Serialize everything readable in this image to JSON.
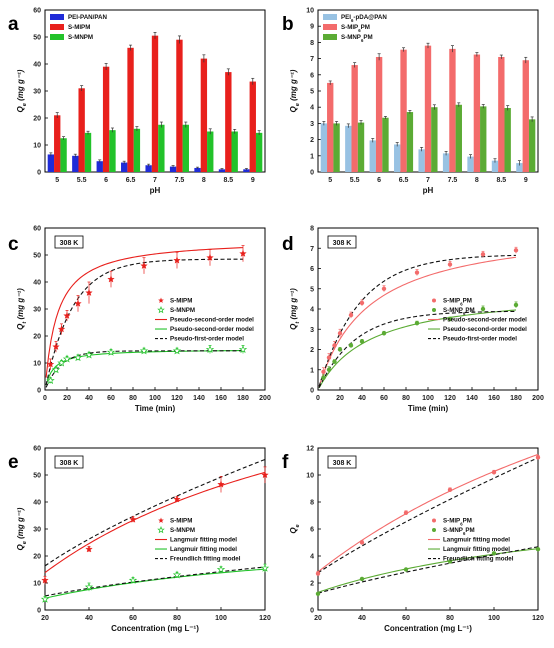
{
  "chart_data": [
    {
      "panel": "a",
      "type": "bar",
      "xlabel": "pH",
      "ylabel": "Q",
      "ylabel_sub": "e",
      "ylabel_unit": "(mg g⁻¹)",
      "categories": [
        "5",
        "5.5",
        "6",
        "6.5",
        "7",
        "7.5",
        "8",
        "8.5",
        "9"
      ],
      "ylim": [
        0,
        60
      ],
      "yticks": [
        0,
        10,
        20,
        30,
        40,
        50,
        60
      ],
      "legend_position": "top-left",
      "series": [
        {
          "name": "PEI-PAN/PAN",
          "color": "#1f2bd8",
          "values": [
            6.5,
            6,
            4,
            3.5,
            2.5,
            2,
            1.5,
            1,
            1
          ],
          "errors": [
            0.6,
            0.6,
            0.5,
            0.5,
            0.4,
            0.4,
            0.3,
            0.3,
            0.3
          ]
        },
        {
          "name": "S-MIPM",
          "color": "#e8201c",
          "values": [
            21,
            31,
            39,
            46,
            50.5,
            49,
            42,
            37,
            33.5
          ],
          "errors": [
            1,
            1,
            1.2,
            1,
            1.2,
            1.4,
            1.4,
            1.2,
            1.2
          ]
        },
        {
          "name": "S-MNPM",
          "color": "#22c22a",
          "values": [
            12.5,
            14.5,
            15.5,
            16,
            17.5,
            17.5,
            15,
            15,
            14.5
          ],
          "errors": [
            0.6,
            0.6,
            0.8,
            0.8,
            1,
            1,
            1,
            0.8,
            0.8
          ]
        }
      ]
    },
    {
      "panel": "b",
      "type": "bar",
      "xlabel": "pH",
      "ylabel": "Q",
      "ylabel_sub": "e",
      "ylabel_unit": "(mg g⁻¹)",
      "categories": [
        "5",
        "5.5",
        "6",
        "6.5",
        "7",
        "7.5",
        "8",
        "8.5",
        "9"
      ],
      "ylim": [
        0,
        10
      ],
      "yticks": [
        0,
        1,
        2,
        3,
        4,
        5,
        6,
        7,
        8,
        9,
        10
      ],
      "legend_position": "top-left",
      "series": [
        {
          "name": "PEI",
          "name_sub": "6",
          "name_rest": "-pDA@PAN",
          "color": "#98c2e3",
          "values": [
            3,
            2.85,
            1.95,
            1.7,
            1.4,
            1.15,
            0.95,
            0.7,
            0.55
          ],
          "errors": [
            0.12,
            0.12,
            0.12,
            0.12,
            0.12,
            0.12,
            0.12,
            0.12,
            0.15
          ]
        },
        {
          "name": "S-MIP",
          "name_sub": "6",
          "name_rest": "PM",
          "color": "#f36b6b",
          "values": [
            5.5,
            6.6,
            7.1,
            7.55,
            7.8,
            7.6,
            7.25,
            7.1,
            6.9
          ],
          "errors": [
            0.12,
            0.15,
            0.2,
            0.12,
            0.15,
            0.2,
            0.12,
            0.12,
            0.18
          ]
        },
        {
          "name": "S-MNP",
          "name_sub": "6",
          "name_rest": "PM",
          "color": "#5bab34",
          "values": [
            3,
            3.05,
            3.35,
            3.7,
            4,
            4.15,
            4.05,
            3.95,
            3.25
          ],
          "errors": [
            0.12,
            0.12,
            0.08,
            0.1,
            0.15,
            0.12,
            0.12,
            0.15,
            0.15
          ]
        }
      ]
    },
    {
      "panel": "c",
      "type": "scatter",
      "xlabel": "Time (min)",
      "ylabel": "Q",
      "ylabel_sub": "t",
      "ylabel_unit": "(mg g⁻¹)",
      "xlim": [
        0,
        200
      ],
      "xticks": [
        0,
        20,
        40,
        60,
        80,
        100,
        120,
        140,
        160,
        180,
        200
      ],
      "ylim": [
        0,
        60
      ],
      "yticks": [
        0,
        10,
        20,
        30,
        40,
        50,
        60
      ],
      "temperature_label": "308 K",
      "legend_position": "middle-right",
      "series": [
        {
          "name": "S-MIPM",
          "color": "#e8201c",
          "marker": "star-filled",
          "x": [
            5,
            10,
            15,
            20,
            30,
            40,
            60,
            90,
            120,
            150,
            180
          ],
          "y": [
            9.5,
            16,
            22.5,
            27.5,
            32,
            36,
            41,
            46,
            48,
            49,
            50.5
          ],
          "errors": [
            2,
            2,
            2,
            2,
            3,
            4,
            3,
            3,
            3,
            3,
            3
          ]
        },
        {
          "name": "S-MNPM",
          "color": "#22c22a",
          "marker": "star-open",
          "x": [
            5,
            10,
            15,
            20,
            30,
            40,
            60,
            90,
            120,
            150,
            180
          ],
          "y": [
            3.5,
            7.5,
            10,
            11.5,
            12,
            13,
            14,
            14.5,
            14.5,
            15,
            15
          ],
          "errors": [
            1,
            1,
            1,
            1,
            1,
            1,
            1,
            1,
            1,
            1.5,
            1.5
          ]
        }
      ],
      "fits": [
        {
          "name": "Pseudo-second-order model",
          "color": "#e8201c",
          "style": "solid",
          "qe": 56,
          "k": 0.0016,
          "kind": "pso"
        },
        {
          "name": "Pseudo-second-order model",
          "color": "#22c22a",
          "style": "solid",
          "qe": 15.2,
          "k": 0.009,
          "kind": "pso"
        },
        {
          "name": "Pseudo-first-order model",
          "color": "#111111",
          "style": "dashed",
          "qe": 48.5,
          "k": 0.04,
          "kind": "pfo"
        },
        {
          "name": "",
          "color": "#111111",
          "style": "dashed",
          "qe": 14.5,
          "k": 0.07,
          "kind": "pfo"
        }
      ]
    },
    {
      "panel": "d",
      "type": "scatter",
      "xlabel": "Time (min)",
      "ylabel": "Q",
      "ylabel_sub": "t",
      "ylabel_unit": "(mg g⁻¹)",
      "xlim": [
        0,
        200
      ],
      "xticks": [
        0,
        20,
        40,
        60,
        80,
        100,
        120,
        140,
        160,
        180,
        200
      ],
      "ylim": [
        0,
        8
      ],
      "yticks": [
        0,
        1,
        2,
        3,
        4,
        5,
        6,
        7,
        8
      ],
      "temperature_label": "308 K",
      "legend_position": "middle-right",
      "series": [
        {
          "name": "S-MIP",
          "name_sub": "6",
          "name_rest": "PM",
          "color": "#f36b6b",
          "marker": "circle",
          "x": [
            5,
            10,
            15,
            20,
            30,
            40,
            60,
            90,
            120,
            150,
            180
          ],
          "y": [
            0.9,
            1.6,
            2.2,
            2.8,
            3.7,
            4.3,
            5,
            5.8,
            6.2,
            6.7,
            6.9
          ],
          "errors": [
            0.2,
            0.2,
            0.2,
            0.2,
            0.15,
            0.15,
            0.15,
            0.15,
            0.15,
            0.15,
            0.15
          ]
        },
        {
          "name": "S-MNP",
          "name_sub": "6",
          "name_rest": "PM",
          "color": "#5bab34",
          "marker": "circle",
          "x": [
            5,
            10,
            15,
            20,
            30,
            40,
            60,
            90,
            120,
            150,
            180
          ],
          "y": [
            0.6,
            1,
            1.4,
            2,
            2.2,
            2.4,
            2.8,
            3.3,
            3.5,
            4,
            4.2
          ],
          "errors": [
            0.15,
            0.15,
            0.1,
            0.1,
            0.1,
            0.1,
            0.1,
            0.1,
            0.1,
            0.15,
            0.15
          ]
        }
      ],
      "fits": [
        {
          "name": "Pseudo-second-order model",
          "color": "#f36b6b",
          "style": "solid",
          "qe": 8.2,
          "k": 0.0027,
          "kind": "pso"
        },
        {
          "name": "Pseudo-second-order model",
          "color": "#5bab34",
          "style": "solid",
          "qe": 5.0,
          "k": 0.0042,
          "kind": "pso"
        },
        {
          "name": "Pseudo-first-order model",
          "color": "#111111",
          "style": "dashed",
          "qe": 6.7,
          "k": 0.027,
          "kind": "pfo"
        },
        {
          "name": "",
          "color": "#111111",
          "style": "dashed",
          "qe": 3.9,
          "k": 0.03,
          "kind": "pfo"
        }
      ]
    },
    {
      "panel": "e",
      "type": "scatter",
      "xlabel": "Concentration (mg L⁻¹)",
      "ylabel": "Q",
      "ylabel_sub": "e",
      "ylabel_unit": "(mg g⁻¹)",
      "xlim": [
        20,
        120
      ],
      "xticks": [
        20,
        40,
        60,
        80,
        100,
        120
      ],
      "ylim": [
        0,
        60
      ],
      "yticks": [
        0,
        10,
        20,
        30,
        40,
        50,
        60
      ],
      "temperature_label": "308 K",
      "legend_position": "middle-right",
      "series": [
        {
          "name": "S-MIPM",
          "color": "#e8201c",
          "marker": "star-filled",
          "x": [
            20,
            40,
            60,
            80,
            100,
            120
          ],
          "y": [
            11,
            22.5,
            33.5,
            41,
            46.5,
            50
          ],
          "errors": [
            1.5,
            1,
            1,
            1,
            3,
            3
          ]
        },
        {
          "name": "S-MNPM",
          "color": "#22c22a",
          "marker": "star-open",
          "x": [
            20,
            40,
            60,
            80,
            100,
            120
          ],
          "y": [
            4,
            8.5,
            11,
            13,
            15,
            15.5
          ],
          "errors": [
            1,
            1.5,
            1,
            1,
            1,
            1.5
          ]
        }
      ],
      "fits": [
        {
          "name": "Langmuir fitting model",
          "color": "#e8201c",
          "style": "solid",
          "qm": 110,
          "kl": 0.0072,
          "kind": "langmuir"
        },
        {
          "name": "Langmuir fitting model",
          "color": "#22c22a",
          "style": "solid",
          "qm": 30,
          "kl": 0.0085,
          "kind": "langmuir"
        },
        {
          "name": "Freundlich fitting model",
          "color": "#111111",
          "style": "dashed",
          "kf": 2.1,
          "n": 1.46,
          "kind": "freundlich"
        },
        {
          "name": "",
          "color": "#111111",
          "style": "dashed",
          "kf": 0.8,
          "n": 1.6,
          "kind": "freundlich"
        }
      ]
    },
    {
      "panel": "f",
      "type": "scatter",
      "xlabel": "Concentration (mg L⁻¹)",
      "ylabel": "Q",
      "ylabel_sub": "e",
      "xlim": [
        20,
        120
      ],
      "xticks": [
        20,
        40,
        60,
        80,
        100,
        120
      ],
      "ylim": [
        0,
        12
      ],
      "yticks": [
        0,
        2,
        4,
        6,
        8,
        10,
        12
      ],
      "temperature_label": "308 K",
      "legend_position": "middle-right",
      "series": [
        {
          "name": "S-MIP",
          "name_sub": "6",
          "name_rest": "PM",
          "color": "#f36b6b",
          "marker": "circle",
          "x": [
            20,
            40,
            60,
            80,
            100,
            120
          ],
          "y": [
            2.7,
            5,
            7.2,
            8.9,
            10.2,
            11.3
          ],
          "errors": [
            0.15,
            0.15,
            0.15,
            0.15,
            0.15,
            0.15
          ]
        },
        {
          "name": "S-MNP",
          "name_sub": "6",
          "name_rest": "PM",
          "color": "#5bab34",
          "marker": "circle",
          "x": [
            20,
            40,
            60,
            80,
            100,
            120
          ],
          "y": [
            1.2,
            2.3,
            3,
            3.6,
            4.2,
            4.5
          ],
          "errors": [
            0.1,
            0.1,
            0.1,
            0.1,
            0.1,
            0.1
          ]
        }
      ],
      "fits": [
        {
          "name": "Langmuir fitting model",
          "color": "#f36b6b",
          "style": "solid",
          "qm": 30,
          "kl": 0.0052,
          "kind": "langmuir"
        },
        {
          "name": "Langmuir fitting model",
          "color": "#5bab34",
          "style": "solid",
          "qm": 9,
          "kl": 0.0085,
          "kind": "langmuir"
        },
        {
          "name": "Freundlich fitting model",
          "color": "#111111",
          "style": "dashed",
          "kf": 0.26,
          "n": 1.27,
          "kind": "freundlich"
        },
        {
          "name": "",
          "color": "#111111",
          "style": "dashed",
          "kf": 0.135,
          "n": 1.35,
          "kind": "freundlich"
        }
      ]
    }
  ]
}
